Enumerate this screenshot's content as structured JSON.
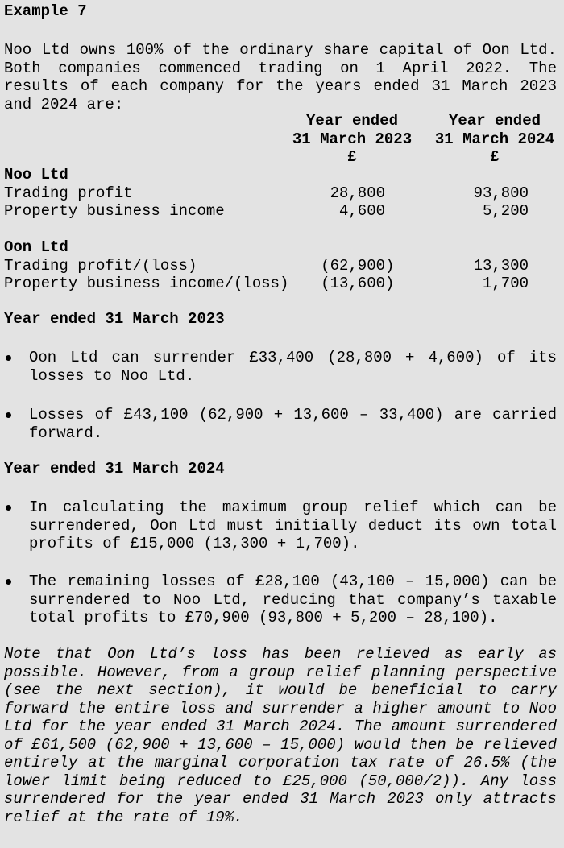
{
  "title": "Example 7",
  "intro": "Noo Ltd owns 100% of the ordinary share capital of Oon Ltd. Both companies commenced trading on 1 April 2022. The results of each company for the years ended 31 March 2023 and 2024 are:",
  "table": {
    "columns": [
      [
        "Year ended",
        "31 March 2023",
        "£"
      ],
      [
        "Year ended",
        "31 March 2024",
        "£"
      ]
    ],
    "sections": [
      {
        "name": "Noo Ltd",
        "rows": [
          {
            "label": "Trading profit",
            "values": [
              "28,800",
              "93,800"
            ]
          },
          {
            "label": "Property business income",
            "values": [
              "4,600",
              "5,200"
            ]
          }
        ]
      },
      {
        "name": "Oon Ltd",
        "rows": [
          {
            "label": "Trading profit/(loss)",
            "values": [
              "(62,900)",
              "13,300"
            ]
          },
          {
            "label": "Property business income/(loss)",
            "values": [
              "(13,600)",
              "1,700"
            ]
          }
        ]
      }
    ]
  },
  "sections": [
    {
      "heading": "Year ended 31 March 2023",
      "bullets": [
        "Oon Ltd can surrender £33,400 (28,800 + 4,600) of its losses to Noo Ltd.",
        "Losses of £43,100 (62,900 + 13,600 – 33,400) are carried forward."
      ]
    },
    {
      "heading": "Year ended 31 March 2024",
      "bullets": [
        "In calculating the maximum group relief which can be surrendered, Oon Ltd must initially deduct its own total profits of £15,000 (13,300 + 1,700).",
        "The remaining losses of £28,100 (43,100 – 15,000) can be surrendered to Noo Ltd, reducing that company’s taxable total profits to £70,900 (93,800 + 5,200 – 28,100)."
      ]
    }
  ],
  "note": "Note that Oon Ltd’s loss has been relieved as early as possible. However, from a group relief planning perspective (see the next section), it would be beneficial to carry forward the entire loss and surrender a higher amount to Noo Ltd for the year ended 31 March 2024. The amount surrendered of £61,500 (62,900 + 13,600 – 15,000) would then be relieved entirely at the marginal corporation tax rate of 26.5% (the lower limit being reduced to £25,000 (50,000/2)). Any loss surrendered for the year ended 31 March 2023 only attracts relief at the rate of 19%."
}
